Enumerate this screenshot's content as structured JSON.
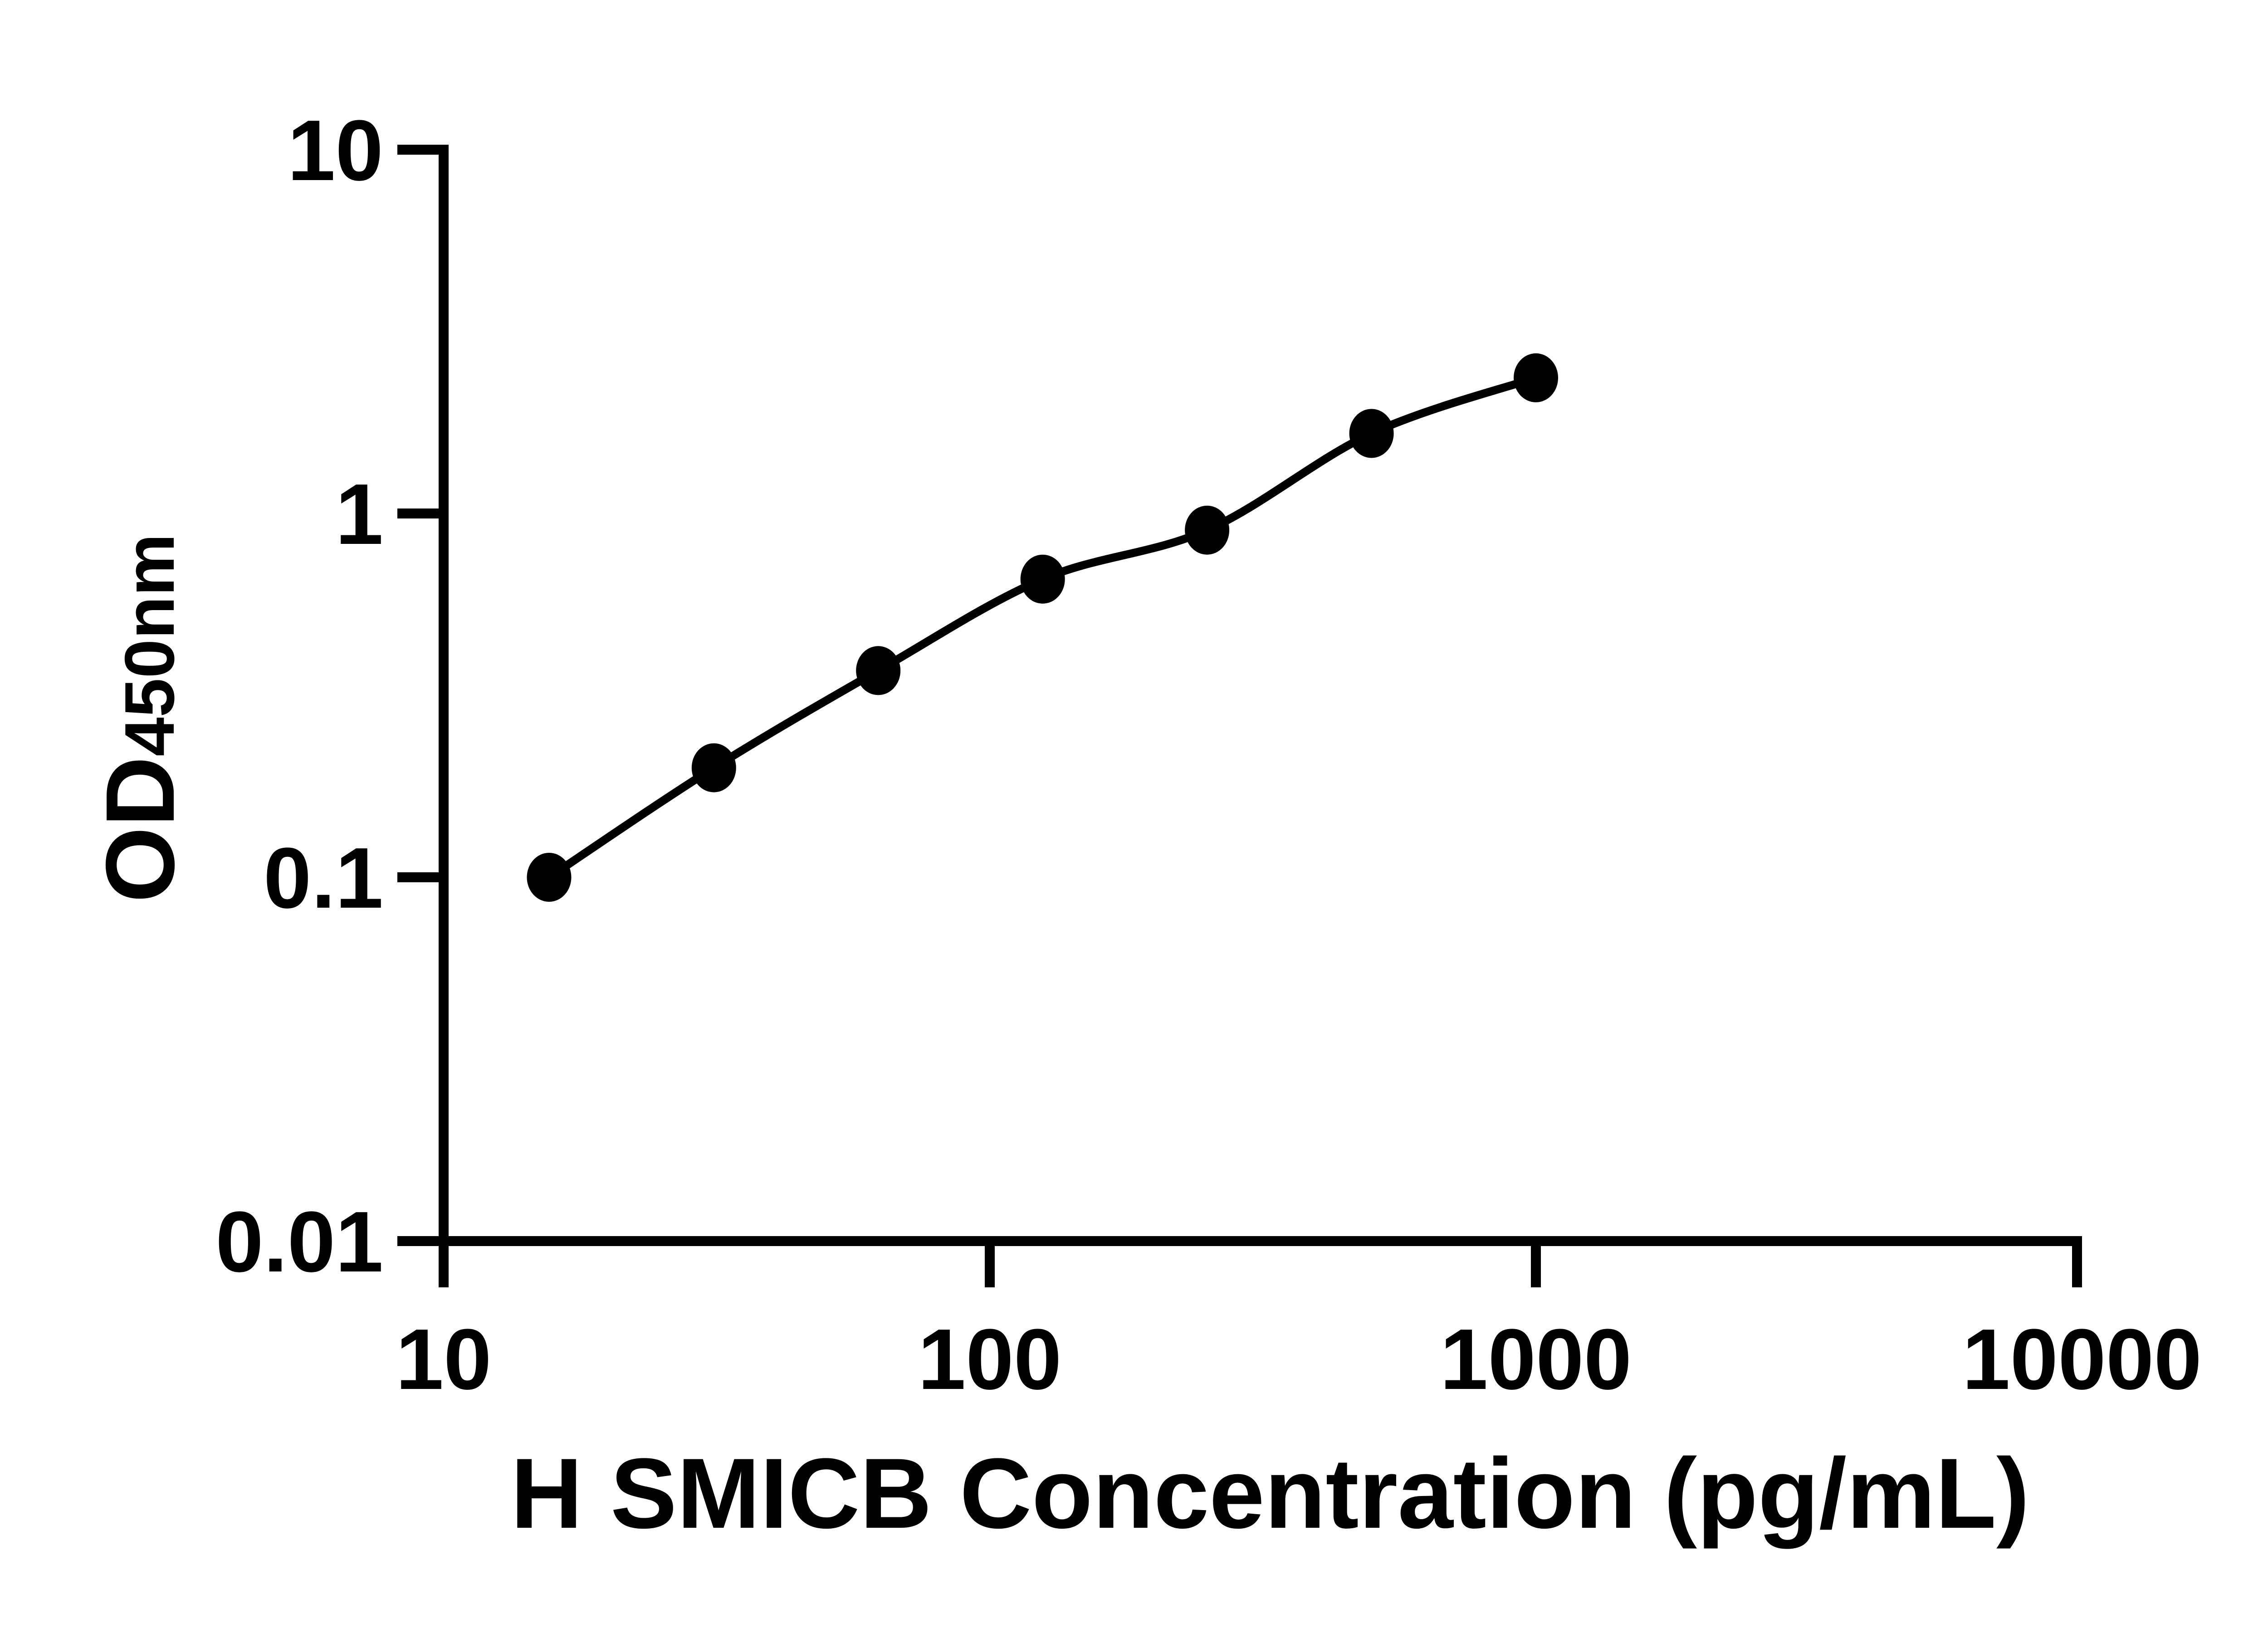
{
  "figure": {
    "background_color": "#ffffff",
    "ink_color": "#000000"
  },
  "chart_data": {
    "type": "scatter",
    "title": "",
    "xlabel": "H SMICB Concentration (pg/mL)",
    "ylabel_main": "OD",
    "ylabel_subscript": "450nm",
    "x_scale": "log10",
    "y_scale": "log10",
    "xlim": [
      10,
      10000
    ],
    "ylim": [
      0.01,
      10
    ],
    "grid": false,
    "legend": null,
    "x_ticks": [
      {
        "value": 10,
        "label": "10"
      },
      {
        "value": 100,
        "label": "100"
      },
      {
        "value": 1000,
        "label": "1000"
      },
      {
        "value": 10000,
        "label": "10000"
      }
    ],
    "y_ticks": [
      {
        "value": 10,
        "label": "10"
      },
      {
        "value": 1,
        "label": "1"
      },
      {
        "value": 0.1,
        "label": "0.1"
      },
      {
        "value": 0.01,
        "label": "0.01"
      }
    ],
    "series": [
      {
        "marker": "filled-circle",
        "line": "smooth",
        "x": [
          15.6,
          31.25,
          62.5,
          125,
          250,
          500,
          1000
        ],
        "y": [
          0.1,
          0.2,
          0.37,
          0.66,
          0.9,
          1.66,
          2.36
        ]
      }
    ]
  }
}
